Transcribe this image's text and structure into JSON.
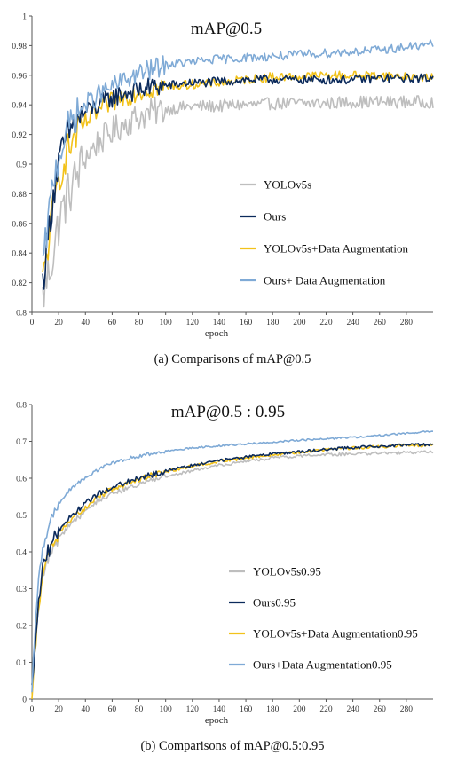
{
  "captions": {
    "a": "(a) Comparisons of mAP@0.5",
    "b": "(b) Comparisons of mAP@0.5:0.95"
  },
  "chart_data": [
    {
      "type": "line",
      "title": "mAP@0.5",
      "xlabel": "epoch",
      "ylabel": "",
      "xlim": [
        0,
        300
      ],
      "ylim": [
        0.8,
        1.0
      ],
      "xticks": [
        0,
        20,
        40,
        60,
        80,
        100,
        120,
        140,
        160,
        180,
        200,
        220,
        240,
        260,
        280
      ],
      "yticks": [
        0.8,
        0.82,
        0.84,
        0.86,
        0.88,
        0.9,
        0.92,
        0.94,
        0.96,
        0.98,
        1
      ],
      "ytick_labels": [
        "0.8",
        "0.82",
        "0.84",
        "0.86",
        "0.88",
        "0.9",
        "0.92",
        "0.94",
        "0.96",
        "0.98",
        "1"
      ],
      "grid": false,
      "legend": "lower-right",
      "series": [
        {
          "name": "YOLOv5s",
          "color": "#BEBEBE",
          "x": [
            8,
            12,
            16,
            20,
            25,
            30,
            35,
            40,
            50,
            60,
            70,
            80,
            90,
            100,
            110,
            120,
            130,
            140,
            150,
            160,
            170,
            180,
            190,
            200,
            220,
            240,
            260,
            280,
            300
          ],
          "y": [
            0.81,
            0.825,
            0.84,
            0.86,
            0.875,
            0.885,
            0.895,
            0.905,
            0.915,
            0.922,
            0.928,
            0.932,
            0.935,
            0.937,
            0.938,
            0.939,
            0.939,
            0.939,
            0.94,
            0.94,
            0.94,
            0.941,
            0.941,
            0.941,
            0.941,
            0.942,
            0.942,
            0.942,
            0.942
          ]
        },
        {
          "name": "Ours",
          "color": "#0B2A5B",
          "x": [
            8,
            12,
            16,
            20,
            25,
            30,
            35,
            40,
            50,
            60,
            70,
            80,
            90,
            100,
            110,
            120,
            130,
            140,
            150,
            160,
            170,
            180,
            190,
            200,
            220,
            240,
            260,
            280,
            300
          ],
          "y": [
            0.82,
            0.85,
            0.88,
            0.9,
            0.915,
            0.925,
            0.93,
            0.935,
            0.94,
            0.945,
            0.948,
            0.95,
            0.952,
            0.953,
            0.954,
            0.955,
            0.955,
            0.956,
            0.956,
            0.957,
            0.957,
            0.957,
            0.957,
            0.957,
            0.957,
            0.957,
            0.958,
            0.958,
            0.958
          ]
        },
        {
          "name": "YOLOv5s+Data Augmentation",
          "color": "#F2C21B",
          "x": [
            8,
            12,
            16,
            20,
            25,
            30,
            35,
            40,
            50,
            60,
            70,
            80,
            90,
            100,
            110,
            120,
            130,
            140,
            150,
            160,
            170,
            180,
            190,
            200,
            220,
            240,
            260,
            280,
            300
          ],
          "y": [
            0.82,
            0.845,
            0.87,
            0.89,
            0.905,
            0.915,
            0.922,
            0.928,
            0.936,
            0.942,
            0.946,
            0.949,
            0.951,
            0.952,
            0.953,
            0.954,
            0.954,
            0.955,
            0.956,
            0.957,
            0.958,
            0.959,
            0.959,
            0.959,
            0.96,
            0.96,
            0.96,
            0.959,
            0.958
          ]
        },
        {
          "name": "Ours+ Data Augmentation",
          "color": "#7FAAD6",
          "x": [
            8,
            12,
            16,
            20,
            25,
            30,
            35,
            40,
            50,
            60,
            70,
            80,
            90,
            100,
            110,
            120,
            130,
            140,
            150,
            160,
            170,
            180,
            190,
            200,
            220,
            240,
            260,
            280,
            300
          ],
          "y": [
            0.83,
            0.86,
            0.89,
            0.905,
            0.92,
            0.93,
            0.935,
            0.94,
            0.947,
            0.952,
            0.957,
            0.961,
            0.964,
            0.967,
            0.968,
            0.969,
            0.97,
            0.971,
            0.971,
            0.972,
            0.972,
            0.973,
            0.973,
            0.974,
            0.975,
            0.976,
            0.977,
            0.979,
            0.981
          ]
        }
      ]
    },
    {
      "type": "line",
      "title": "mAP@0.5 : 0.95",
      "xlabel": "epoch",
      "ylabel": "",
      "xlim": [
        0,
        300
      ],
      "ylim": [
        0,
        0.8
      ],
      "xticks": [
        0,
        20,
        40,
        60,
        80,
        100,
        120,
        140,
        160,
        180,
        200,
        220,
        240,
        260,
        280
      ],
      "yticks": [
        0,
        0.1,
        0.2,
        0.3,
        0.4,
        0.5,
        0.6,
        0.7,
        0.8
      ],
      "ytick_labels": [
        "0",
        "0.1",
        "0.2",
        "0.3",
        "0.4",
        "0.5",
        "0.6",
        "0.7",
        "0.8"
      ],
      "grid": false,
      "legend": "lower-right",
      "series": [
        {
          "name": "YOLOv5s0.95",
          "color": "#BEBEBE",
          "x": [
            0,
            2,
            5,
            8,
            12,
            16,
            20,
            25,
            30,
            40,
            50,
            60,
            70,
            80,
            90,
            100,
            120,
            140,
            160,
            180,
            200,
            220,
            240,
            260,
            280,
            300
          ],
          "y": [
            0.02,
            0.12,
            0.25,
            0.33,
            0.38,
            0.41,
            0.44,
            0.46,
            0.48,
            0.51,
            0.54,
            0.56,
            0.57,
            0.585,
            0.595,
            0.605,
            0.62,
            0.635,
            0.645,
            0.655,
            0.66,
            0.664,
            0.666,
            0.668,
            0.67,
            0.671
          ]
        },
        {
          "name": "Ours0.95",
          "color": "#0B2A5B",
          "x": [
            0,
            2,
            5,
            8,
            12,
            16,
            20,
            25,
            30,
            40,
            50,
            60,
            70,
            80,
            90,
            100,
            120,
            140,
            160,
            180,
            200,
            220,
            240,
            260,
            280,
            300
          ],
          "y": [
            0.02,
            0.13,
            0.26,
            0.35,
            0.4,
            0.43,
            0.46,
            0.48,
            0.5,
            0.53,
            0.56,
            0.575,
            0.59,
            0.6,
            0.61,
            0.62,
            0.635,
            0.648,
            0.657,
            0.666,
            0.672,
            0.678,
            0.683,
            0.687,
            0.69,
            0.692
          ]
        },
        {
          "name": "YOLOv5s+Data Augmentation0.95",
          "color": "#F2C21B",
          "x": [
            0,
            2,
            5,
            8,
            12,
            16,
            20,
            25,
            30,
            40,
            50,
            60,
            70,
            80,
            90,
            100,
            120,
            140,
            160,
            180,
            200,
            220,
            240,
            260,
            280,
            300
          ],
          "y": [
            0.02,
            0.12,
            0.25,
            0.34,
            0.39,
            0.42,
            0.45,
            0.47,
            0.49,
            0.52,
            0.55,
            0.57,
            0.585,
            0.597,
            0.608,
            0.618,
            0.633,
            0.645,
            0.655,
            0.664,
            0.671,
            0.677,
            0.682,
            0.686,
            0.688,
            0.69
          ]
        },
        {
          "name": "Ours+Data Augmentation0.95",
          "color": "#7FAAD6",
          "x": [
            0,
            2,
            5,
            8,
            12,
            16,
            20,
            25,
            30,
            40,
            50,
            60,
            70,
            80,
            90,
            100,
            120,
            140,
            160,
            180,
            200,
            220,
            240,
            260,
            280,
            300
          ],
          "y": [
            0.03,
            0.17,
            0.32,
            0.41,
            0.46,
            0.5,
            0.53,
            0.555,
            0.575,
            0.6,
            0.625,
            0.64,
            0.652,
            0.66,
            0.667,
            0.673,
            0.682,
            0.688,
            0.693,
            0.698,
            0.703,
            0.707,
            0.711,
            0.716,
            0.722,
            0.728
          ]
        }
      ]
    }
  ]
}
